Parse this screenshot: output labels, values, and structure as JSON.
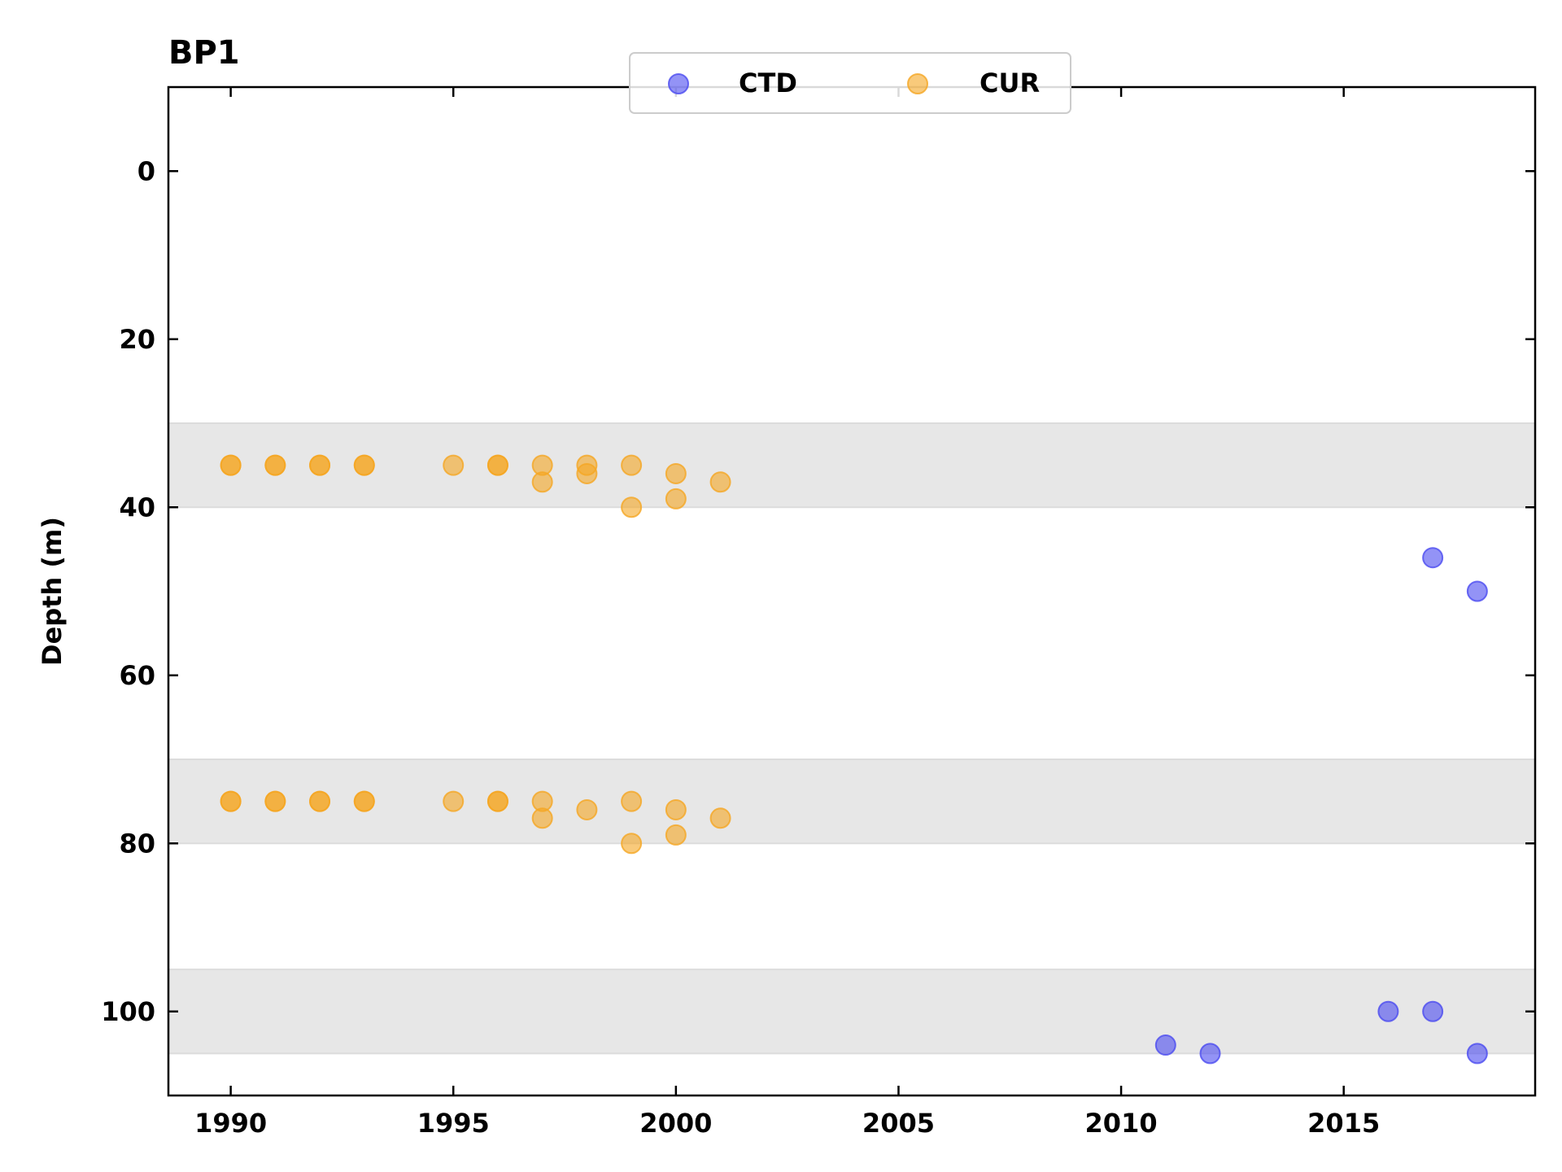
{
  "chart_data": {
    "type": "scatter",
    "title": "BP1",
    "xlabel": "",
    "ylabel": "Depth (m)",
    "xlim": [
      1988.6,
      2019.3
    ],
    "ylim": [
      -10,
      110
    ],
    "y_inverted": true,
    "xticks": [
      1990,
      1995,
      2000,
      2005,
      2010,
      2015
    ],
    "yticks": [
      0,
      20,
      40,
      60,
      80,
      100
    ],
    "grid": false,
    "legend": {
      "placement": "top-center",
      "columns": 2
    },
    "shaded_bands": [
      {
        "y_from": 30,
        "y_to": 40
      },
      {
        "y_from": 70,
        "y_to": 80
      },
      {
        "y_from": 95,
        "y_to": 105
      }
    ],
    "series": [
      {
        "name": "CTD",
        "color": "#4b4bf0",
        "points": [
          {
            "x": 2011,
            "y": 104
          },
          {
            "x": 2012,
            "y": 105
          },
          {
            "x": 2016,
            "y": 100
          },
          {
            "x": 2017,
            "y": 46
          },
          {
            "x": 2017,
            "y": 100
          },
          {
            "x": 2018,
            "y": 50
          },
          {
            "x": 2018,
            "y": 105
          }
        ]
      },
      {
        "name": "CUR",
        "color": "#f5a623",
        "points": [
          {
            "x": 1990,
            "y": 35
          },
          {
            "x": 1990,
            "y": 35
          },
          {
            "x": 1991,
            "y": 35
          },
          {
            "x": 1991,
            "y": 35
          },
          {
            "x": 1992,
            "y": 35
          },
          {
            "x": 1992,
            "y": 35
          },
          {
            "x": 1993,
            "y": 35
          },
          {
            "x": 1993,
            "y": 35
          },
          {
            "x": 1995,
            "y": 35
          },
          {
            "x": 1996,
            "y": 35
          },
          {
            "x": 1996,
            "y": 35
          },
          {
            "x": 1997,
            "y": 35
          },
          {
            "x": 1997,
            "y": 37
          },
          {
            "x": 1998,
            "y": 35
          },
          {
            "x": 1998,
            "y": 36
          },
          {
            "x": 1999,
            "y": 35
          },
          {
            "x": 1999,
            "y": 40
          },
          {
            "x": 2000,
            "y": 36
          },
          {
            "x": 2000,
            "y": 39
          },
          {
            "x": 2001,
            "y": 37
          },
          {
            "x": 1990,
            "y": 75
          },
          {
            "x": 1990,
            "y": 75
          },
          {
            "x": 1991,
            "y": 75
          },
          {
            "x": 1991,
            "y": 75
          },
          {
            "x": 1992,
            "y": 75
          },
          {
            "x": 1992,
            "y": 75
          },
          {
            "x": 1993,
            "y": 75
          },
          {
            "x": 1993,
            "y": 75
          },
          {
            "x": 1995,
            "y": 75
          },
          {
            "x": 1996,
            "y": 75
          },
          {
            "x": 1996,
            "y": 75
          },
          {
            "x": 1997,
            "y": 75
          },
          {
            "x": 1997,
            "y": 77
          },
          {
            "x": 1998,
            "y": 76
          },
          {
            "x": 1999,
            "y": 75
          },
          {
            "x": 1999,
            "y": 80
          },
          {
            "x": 2000,
            "y": 76
          },
          {
            "x": 2000,
            "y": 79
          },
          {
            "x": 2001,
            "y": 77
          }
        ]
      }
    ]
  }
}
